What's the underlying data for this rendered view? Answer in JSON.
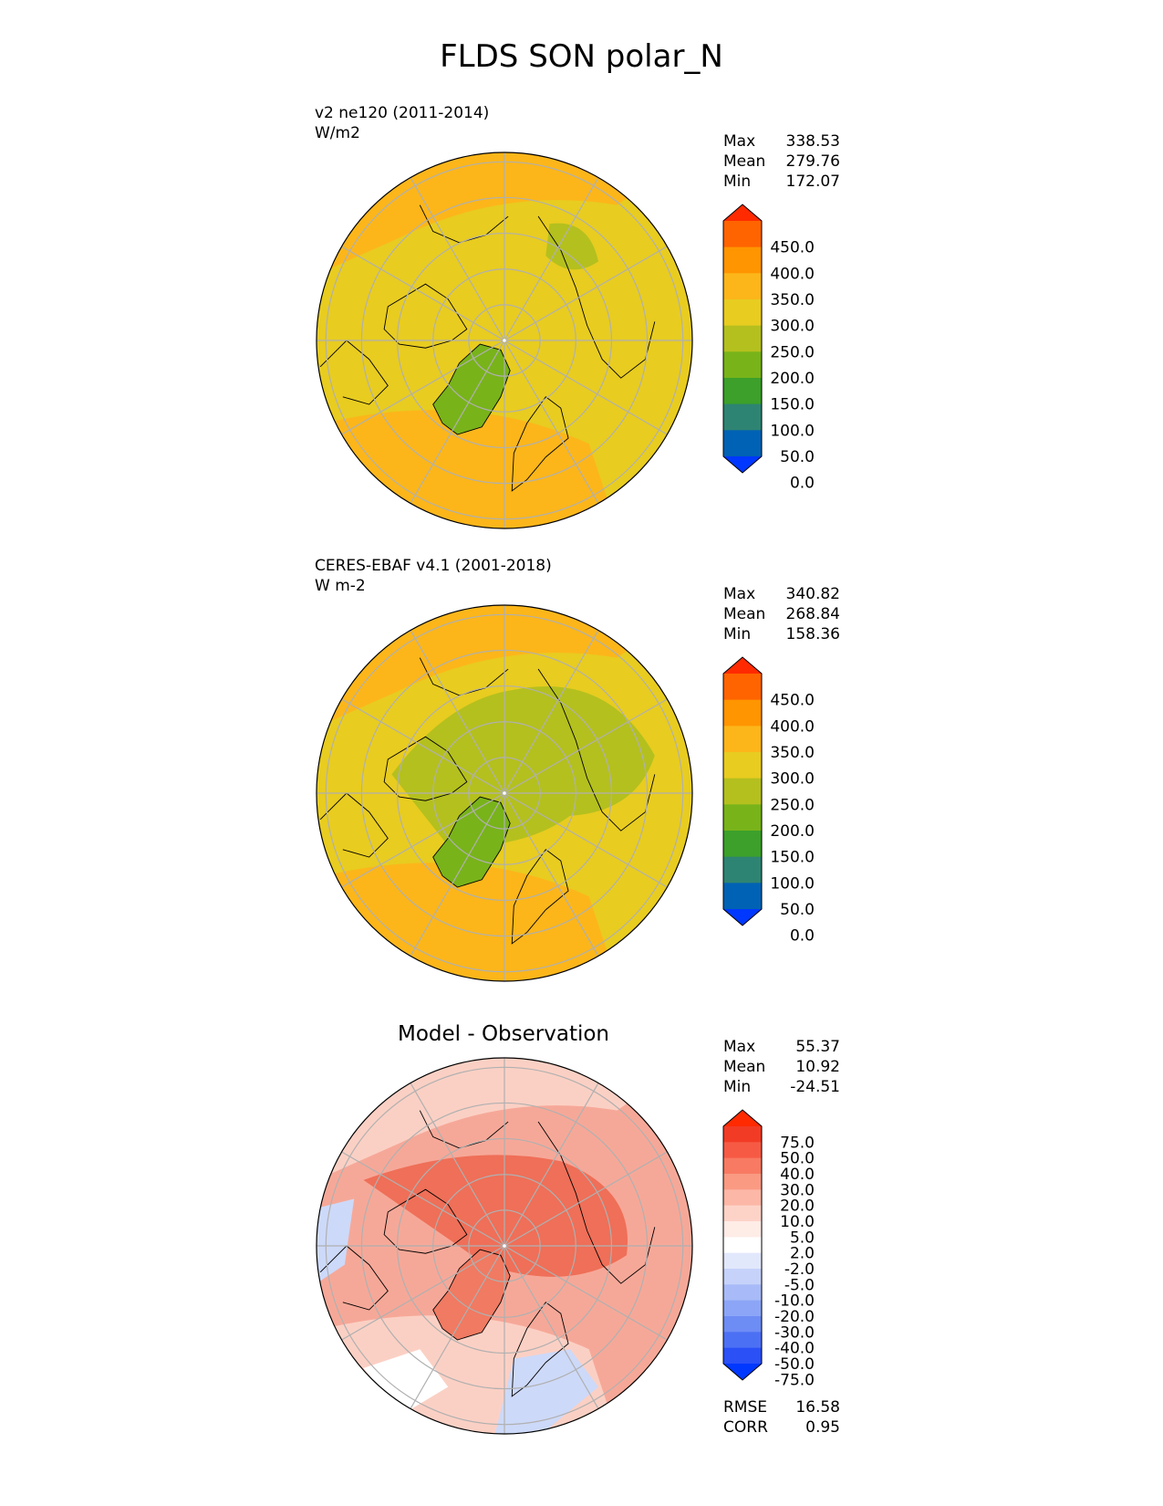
{
  "figure": {
    "title": "FLDS SON polar_N"
  },
  "panels": [
    {
      "title_lines": [
        "v2 ne120 (2011-2014)",
        "W/m2"
      ],
      "center_title": "",
      "stats": [
        {
          "label": "Max",
          "value": "338.53"
        },
        {
          "label": "Mean",
          "value": "279.76"
        },
        {
          "label": "Min",
          "value": "172.07"
        }
      ],
      "colorbar": {
        "ticks": [
          "450.0",
          "400.0",
          "350.0",
          "300.0",
          "250.0",
          "200.0",
          "150.0",
          "100.0",
          "50.0",
          "0.0"
        ],
        "colors": [
          "#ff2a00",
          "#ff6400",
          "#ff9500",
          "#fcb61a",
          "#e8cc20",
          "#b4c01e",
          "#78b31a",
          "#3ca02a",
          "#2e8472",
          "#0062b4",
          "#0038ff"
        ]
      },
      "map": {
        "base": "#e8cc20",
        "ocean_warm": "#fcb61a",
        "ice": "#b4c01e",
        "greenland": "#78b31a"
      },
      "extra_stats": []
    },
    {
      "title_lines": [
        "CERES-EBAF v4.1 (2001-2018)",
        "W m-2"
      ],
      "center_title": "",
      "stats": [
        {
          "label": "Max",
          "value": "340.82"
        },
        {
          "label": "Mean",
          "value": "268.84"
        },
        {
          "label": "Min",
          "value": "158.36"
        }
      ],
      "colorbar": {
        "ticks": [
          "450.0",
          "400.0",
          "350.0",
          "300.0",
          "250.0",
          "200.0",
          "150.0",
          "100.0",
          "50.0",
          "0.0"
        ],
        "colors": [
          "#ff2a00",
          "#ff6400",
          "#ff9500",
          "#fcb61a",
          "#e8cc20",
          "#b4c01e",
          "#78b31a",
          "#3ca02a",
          "#2e8472",
          "#0062b4",
          "#0038ff"
        ]
      },
      "map": {
        "base": "#e8cc20",
        "ocean_warm": "#fcb61a",
        "ice": "#b4c01e",
        "greenland": "#78b31a"
      },
      "extra_stats": []
    },
    {
      "title_lines": [],
      "center_title": "Model - Observation",
      "stats": [
        {
          "label": "Max",
          "value": "55.37"
        },
        {
          "label": "Mean",
          "value": "10.92"
        },
        {
          "label": "Min",
          "value": "-24.51"
        }
      ],
      "colorbar": {
        "ticks": [
          "75.0",
          "50.0",
          "40.0",
          "30.0",
          "20.0",
          "10.0",
          "5.0",
          "2.0",
          "-2.0",
          "-5.0",
          "-10.0",
          "-20.0",
          "-30.0",
          "-40.0",
          "-50.0",
          "-75.0"
        ],
        "colors": [
          "#ff2a00",
          "#f23b25",
          "#f65a45",
          "#f87a62",
          "#fa9a83",
          "#fcb7a6",
          "#fdd3c8",
          "#feece6",
          "#ffffff",
          "#e2e8fc",
          "#c6d2fa",
          "#a8bbf8",
          "#8ca5f6",
          "#6d8cf4",
          "#4c70f4",
          "#2a50f6",
          "#0038ff"
        ]
      },
      "map": {
        "base": "#f6a898",
        "ocean_warm": "#fbd0c4",
        "ice": "#ef6f58",
        "greenland": "#f07a62",
        "cool": "#cdd9f8",
        "white": "#ffffff"
      },
      "extra_stats": [
        {
          "label": "RMSE",
          "value": "16.58"
        },
        {
          "label": "CORR",
          "value": "0.95"
        }
      ]
    }
  ],
  "chart_data": [
    {
      "type": "heatmap",
      "title": "v2 ne120 (2011-2014)",
      "units": "W/m2",
      "projection": "north polar stereographic",
      "colorbar_levels": [
        0,
        50,
        100,
        150,
        200,
        250,
        300,
        350,
        400,
        450
      ],
      "stats": {
        "max": 338.53,
        "mean": 279.76,
        "min": 172.07
      }
    },
    {
      "type": "heatmap",
      "title": "CERES-EBAF v4.1 (2001-2018)",
      "units": "W m-2",
      "projection": "north polar stereographic",
      "colorbar_levels": [
        0,
        50,
        100,
        150,
        200,
        250,
        300,
        350,
        400,
        450
      ],
      "stats": {
        "max": 340.82,
        "mean": 268.84,
        "min": 158.36
      }
    },
    {
      "type": "heatmap",
      "title": "Model - Observation",
      "projection": "north polar stereographic",
      "colorbar_levels": [
        -75,
        -50,
        -40,
        -30,
        -20,
        -10,
        -5,
        -2,
        2,
        5,
        10,
        20,
        30,
        40,
        50,
        75
      ],
      "stats": {
        "max": 55.37,
        "mean": 10.92,
        "min": -24.51,
        "rmse": 16.58,
        "corr": 0.95
      }
    }
  ]
}
